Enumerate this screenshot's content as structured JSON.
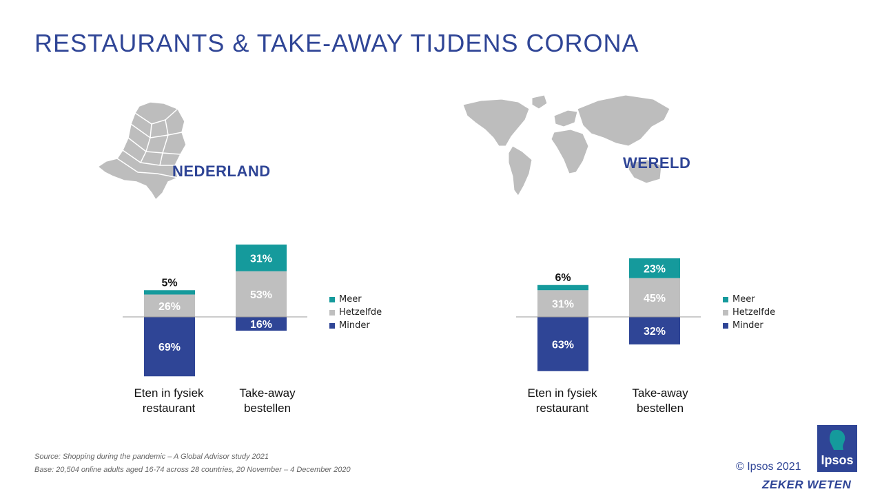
{
  "title": "RESTAURANTS & TAKE-AWAY TIJDENS CORONA",
  "regions": {
    "nl": "NEDERLAND",
    "world": "WERELD"
  },
  "legend": [
    "Meer",
    "Hetzelfde",
    "Minder"
  ],
  "colors": {
    "meer": "#159a9c",
    "hetzelfde": "#bfbfbf",
    "minder": "#2f4596",
    "title": "#2f4596"
  },
  "chart_data": [
    {
      "type": "bar",
      "title": "NEDERLAND",
      "categories": [
        "Eten in fysiek restaurant",
        "Take-away bestellen"
      ],
      "series": [
        {
          "name": "Meer",
          "values": [
            5,
            31
          ]
        },
        {
          "name": "Hetzelfde",
          "values": [
            26,
            53
          ]
        },
        {
          "name": "Minder",
          "values": [
            69,
            16
          ]
        }
      ],
      "labels": {
        "meer": [
          "5%",
          "31%"
        ],
        "hetzelfde": [
          "26%",
          "53%"
        ],
        "minder": [
          "69%",
          "16%"
        ]
      }
    },
    {
      "type": "bar",
      "title": "WERELD",
      "categories": [
        "Eten in fysiek restaurant",
        "Take-away bestellen"
      ],
      "series": [
        {
          "name": "Meer",
          "values": [
            6,
            23
          ]
        },
        {
          "name": "Hetzelfde",
          "values": [
            31,
            45
          ]
        },
        {
          "name": "Minder",
          "values": [
            63,
            32
          ]
        }
      ],
      "labels": {
        "meer": [
          "6%",
          "23%"
        ],
        "hetzelfde": [
          "31%",
          "45%"
        ],
        "minder": [
          "63%",
          "32%"
        ]
      }
    }
  ],
  "category_lines": {
    "c1_line1": "Eten in fysiek",
    "c1_line2": "restaurant",
    "c2_line1": "Take-away",
    "c2_line2": "bestellen"
  },
  "footer": {
    "source": "Source: Shopping during the pandemic – A Global Advisor study 2021",
    "base": "Base: 20,504 online adults aged 16-74 across 28 countries,  20 November – 4 December 2020",
    "copyright": "© Ipsos 2021",
    "logo": "Ipsos",
    "tagline": "ZEKER WETEN"
  }
}
